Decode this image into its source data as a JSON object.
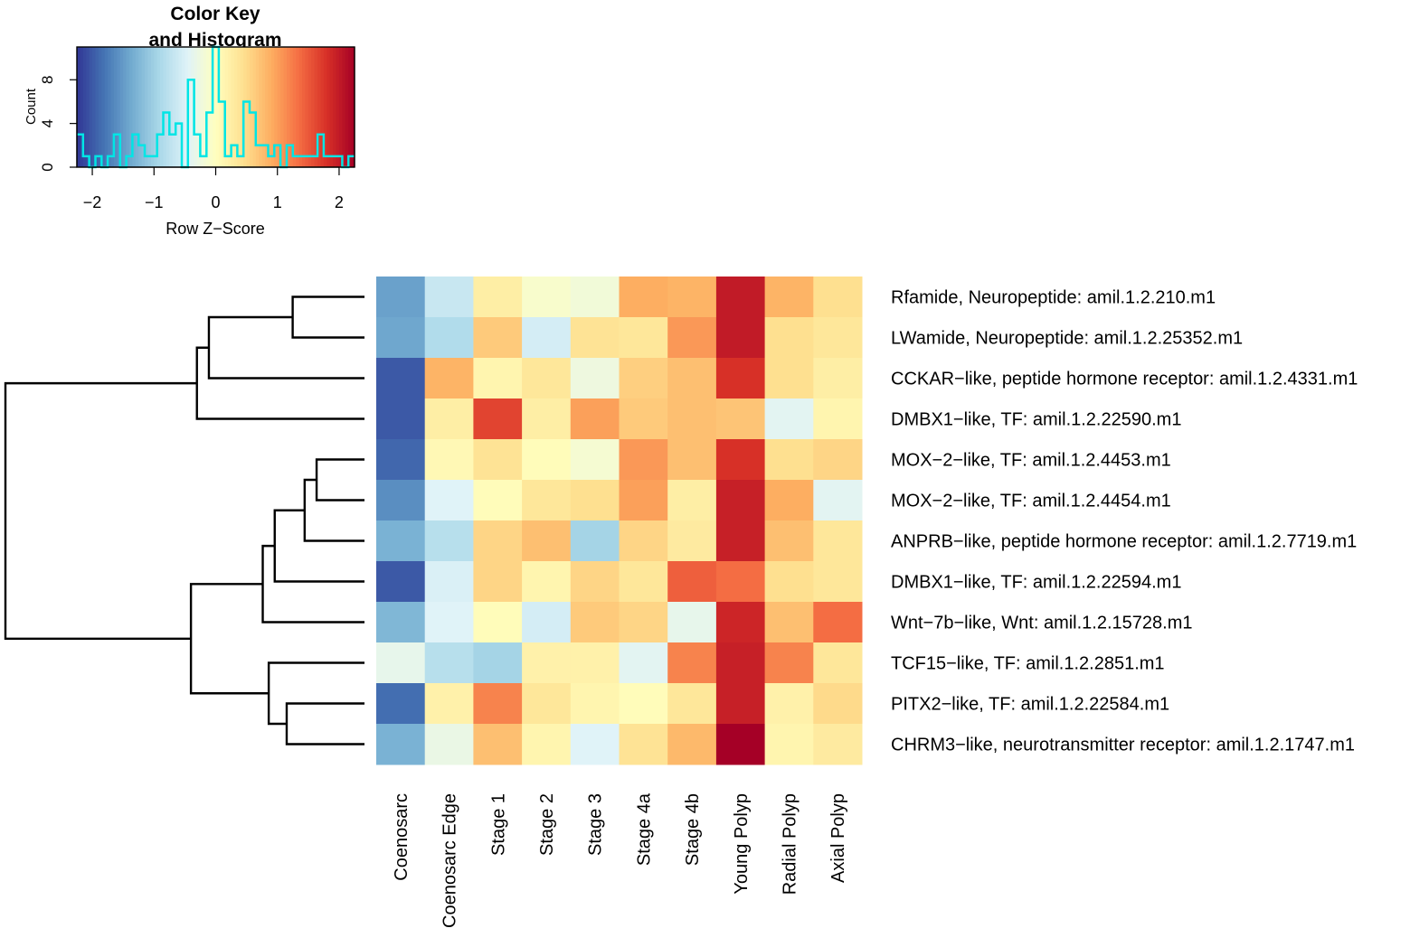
{
  "chart_data": {
    "type": "heatmap",
    "color_key": {
      "title_line1": "Color Key",
      "title_line2": "and Histogram",
      "xlabel": "Row Z−Score",
      "ylabel": "Count",
      "x_ticks": [
        "−2",
        "−1",
        "0",
        "1",
        "2"
      ],
      "x_tick_values": [
        -2,
        -1,
        0,
        1,
        2
      ],
      "y_ticks": [
        "0",
        "4",
        "8"
      ],
      "y_tick_values": [
        0,
        4,
        8
      ],
      "xlim": [
        -2.25,
        2.25
      ],
      "ylim": [
        0,
        11
      ],
      "histogram_line_color": "#00e5e5",
      "histogram": {
        "bin_edges": [
          -2.25,
          -2.15,
          -2.05,
          -1.95,
          -1.85,
          -1.75,
          -1.65,
          -1.55,
          -1.45,
          -1.35,
          -1.25,
          -1.15,
          -1.05,
          -0.95,
          -0.85,
          -0.75,
          -0.65,
          -0.55,
          -0.45,
          -0.35,
          -0.25,
          -0.15,
          -0.05,
          0.05,
          0.15,
          0.25,
          0.35,
          0.45,
          0.55,
          0.65,
          0.75,
          0.85,
          0.95,
          1.05,
          1.15,
          1.25,
          1.35,
          1.45,
          1.55,
          1.65,
          1.75,
          1.85,
          1.95,
          2.05,
          2.15,
          2.25
        ],
        "counts": [
          3,
          1,
          0,
          1,
          0,
          1,
          3,
          0,
          1,
          3,
          2,
          1,
          1,
          3,
          5,
          3,
          4,
          0,
          8,
          3,
          1,
          5,
          11,
          6,
          1,
          2,
          1,
          6,
          5,
          2,
          2,
          1,
          2,
          0,
          2,
          1,
          1,
          1,
          1,
          3,
          1,
          1,
          1,
          0,
          1
        ]
      }
    },
    "palette": [
      "#313695",
      "#4575b4",
      "#74add1",
      "#abd9e9",
      "#e0f3f8",
      "#ffffbf",
      "#fee090",
      "#fdae61",
      "#f46d43",
      "#d73027",
      "#a50026"
    ],
    "columns": [
      "Coenosarc",
      "Coenosarc Edge",
      "Stage 1",
      "Stage 2",
      "Stage 3",
      "Stage 4a",
      "Stage 4b",
      "Young Polyp",
      "Radial Polyp",
      "Axial Polyp"
    ],
    "rows": [
      "Rfamide, Neuropeptide: amil.1.2.210.m1",
      "LWamide, Neuropeptide: amil.1.2.25352.m1",
      "CCKAR−like, peptide hormone receptor: amil.1.2.4331.m1",
      "DMBX1−like, TF: amil.1.2.22590.m1",
      "MOX−2−like, TF: amil.1.2.4453.m1",
      "MOX−2−like, TF: amil.1.2.4454.m1",
      "ANPRB−like, peptide hormone receptor: amil.1.2.7719.m1",
      "DMBX1−like, TF: amil.1.2.22594.m1",
      "Wnt−7b−like, Wnt: amil.1.2.15728.m1",
      "TCF15−like, TF: amil.1.2.2851.m1",
      "PITX2−like, TF: amil.1.2.22584.m1",
      "CHRM3−like, neurotransmitter receptor: amil.1.2.1747.m1"
    ],
    "z_scores": [
      [
        -1.45,
        -0.65,
        0.25,
        -0.1,
        -0.2,
        0.9,
        0.85,
        2.0,
        0.85,
        0.45
      ],
      [
        -1.4,
        -0.85,
        0.65,
        -0.55,
        0.4,
        0.35,
        1.05,
        2.0,
        0.45,
        0.35
      ],
      [
        -2.0,
        0.85,
        0.15,
        0.35,
        -0.25,
        0.6,
        0.75,
        1.8,
        0.45,
        0.25
      ],
      [
        -2.0,
        0.25,
        1.65,
        0.25,
        1.0,
        0.65,
        0.75,
        0.7,
        -0.4,
        0.15
      ],
      [
        -1.9,
        0.1,
        0.4,
        0.05,
        -0.15,
        1.05,
        0.75,
        1.8,
        0.45,
        0.55
      ],
      [
        -1.6,
        -0.45,
        0.05,
        0.35,
        0.45,
        1.0,
        0.25,
        1.95,
        0.9,
        -0.4
      ],
      [
        -1.3,
        -0.8,
        0.55,
        0.75,
        -0.95,
        0.55,
        0.3,
        1.95,
        0.75,
        0.35
      ],
      [
        -2.0,
        -0.5,
        0.55,
        0.15,
        0.55,
        0.35,
        1.45,
        1.35,
        0.45,
        0.35
      ],
      [
        -1.25,
        -0.45,
        0.05,
        -0.55,
        0.65,
        0.55,
        -0.35,
        1.9,
        0.75,
        1.35
      ],
      [
        -0.35,
        -0.8,
        -0.95,
        0.2,
        0.2,
        -0.4,
        1.2,
        1.95,
        1.2,
        0.35
      ],
      [
        -1.85,
        0.2,
        1.2,
        0.35,
        0.15,
        0.05,
        0.35,
        1.95,
        0.2,
        0.5
      ],
      [
        -1.3,
        -0.3,
        0.75,
        0.15,
        -0.45,
        0.4,
        0.8,
        2.3,
        0.15,
        0.3
      ]
    ],
    "row_dendrogram": {
      "merges": [
        {
          "a": "r0",
          "b": "r1",
          "height": 1.2
        },
        {
          "a": "r4",
          "b": "r5",
          "height": 0.8
        },
        {
          "a": "m1",
          "b": "r6",
          "height": 1.0
        },
        {
          "a": "m2",
          "b": "r7",
          "height": 1.5
        },
        {
          "a": "r10",
          "b": "r11",
          "height": 1.3
        },
        {
          "a": "r9",
          "b": "m4",
          "height": 1.6
        },
        {
          "a": "m0",
          "b": "r2",
          "height": 2.6
        },
        {
          "a": "m3",
          "b": "r8",
          "height": 1.7
        },
        {
          "a": "m6",
          "b": "r3",
          "height": 2.8
        },
        {
          "a": "m7",
          "b": "m5",
          "height": 2.9
        },
        {
          "a": "m8",
          "b": "m9",
          "height": 6.0
        }
      ]
    }
  }
}
